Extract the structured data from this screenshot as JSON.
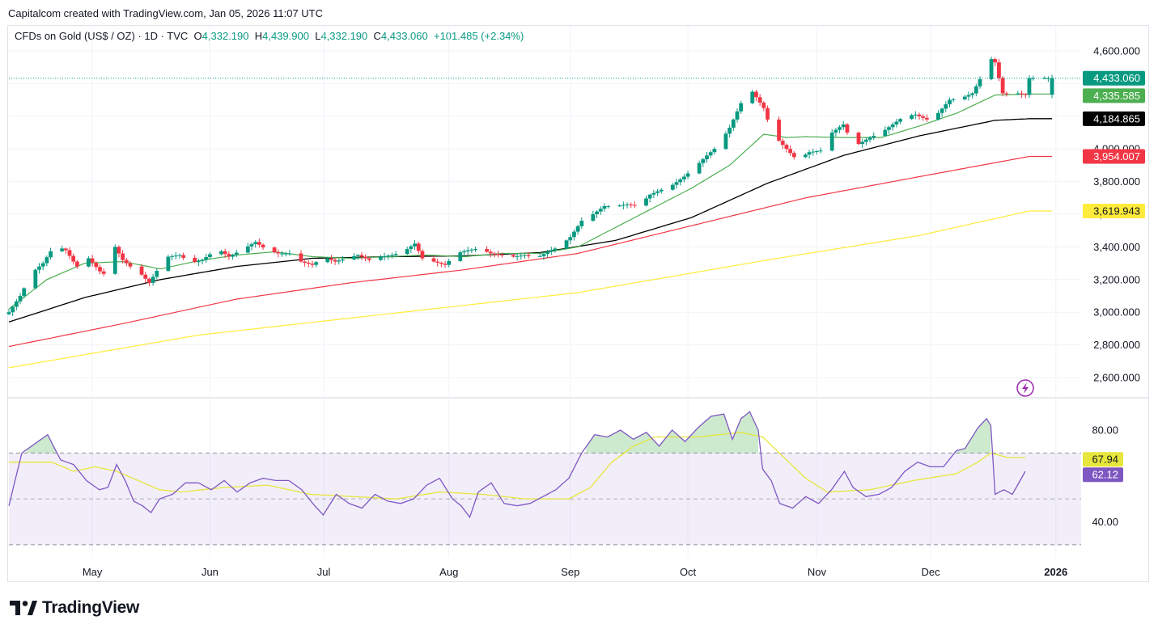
{
  "header": {
    "attribution": "Capitalcom created with TradingView.com, Jan 05, 2026 11:07 UTC",
    "symbol": "CFDs on Gold (US$ / OZ) · 1D · TVC",
    "o_label": "O",
    "o_value": "4,332.190",
    "h_label": "H",
    "h_value": "4,439.900",
    "l_label": "L",
    "l_value": "4,332.190",
    "c_label": "C",
    "c_value": "4,433.060",
    "change": "+101.485 (+2.34%)"
  },
  "brand": {
    "name": "TradingView",
    "icon": "tradingview-logo-icon"
  },
  "colors": {
    "up": "#089981",
    "down": "#f23645",
    "ma_green": "#4caf50",
    "ma_black": "#000000",
    "ma_red": "#f23645",
    "ma_yellow": "#ffeb3b",
    "rsi": "#7e57c2",
    "rsi_ma": "#e6e63c",
    "grid": "#f0f3fa",
    "flash_icon": "#9c27b0"
  },
  "chart_data": [
    {
      "type": "candlestick",
      "title": "CFDs on Gold (US$ / OZ)",
      "interval": "1D",
      "ylim": [
        2500,
        4700
      ],
      "y_ticks": [
        2600,
        2800,
        3000,
        3200,
        3400,
        3600,
        3800,
        4000,
        4200,
        4400,
        4600
      ],
      "y_tick_labels": [
        "2,600.000",
        "2,800.000",
        "3,000.000",
        "3,200.000",
        "3,400.000",
        "3,600.000",
        "3,800.000",
        "4,000.000",
        "4,200.000",
        "4,400.000",
        "4,600.000"
      ],
      "x_labels": [
        "May",
        "Jun",
        "Jul",
        "Aug",
        "Sep",
        "Oct",
        "Nov",
        "Dec",
        "2026"
      ],
      "x_label_days": [
        22,
        53,
        83,
        116,
        148,
        179,
        213,
        243,
        276
      ],
      "last_day": 275,
      "close_anchors": [
        [
          0,
          3000
        ],
        [
          3,
          3100
        ],
        [
          6,
          3240
        ],
        [
          9,
          3300
        ],
        [
          12,
          3410
        ],
        [
          15,
          3380
        ],
        [
          17,
          3310
        ],
        [
          19,
          3250
        ],
        [
          21,
          3330
        ],
        [
          24,
          3250
        ],
        [
          26,
          3220
        ],
        [
          28,
          3400
        ],
        [
          30,
          3320
        ],
        [
          32,
          3280
        ],
        [
          35,
          3230
        ],
        [
          37,
          3180
        ],
        [
          40,
          3290
        ],
        [
          42,
          3340
        ],
        [
          45,
          3350
        ],
        [
          48,
          3300
        ],
        [
          51,
          3320
        ],
        [
          55,
          3390
        ],
        [
          58,
          3340
        ],
        [
          62,
          3390
        ],
        [
          65,
          3430
        ],
        [
          68,
          3380
        ],
        [
          71,
          3360
        ],
        [
          74,
          3360
        ],
        [
          77,
          3310
        ],
        [
          80,
          3290
        ],
        [
          83,
          3340
        ],
        [
          86,
          3310
        ],
        [
          89,
          3330
        ],
        [
          92,
          3350
        ],
        [
          95,
          3320
        ],
        [
          98,
          3340
        ],
        [
          101,
          3350
        ],
        [
          104,
          3370
        ],
        [
          107,
          3420
        ],
        [
          109,
          3330
        ],
        [
          112,
          3310
        ],
        [
          115,
          3290
        ],
        [
          118,
          3360
        ],
        [
          121,
          3380
        ],
        [
          124,
          3390
        ],
        [
          127,
          3360
        ],
        [
          130,
          3350
        ],
        [
          133,
          3340
        ],
        [
          136,
          3350
        ],
        [
          139,
          3330
        ],
        [
          142,
          3370
        ],
        [
          145,
          3400
        ],
        [
          148,
          3460
        ],
        [
          151,
          3560
        ],
        [
          154,
          3600
        ],
        [
          157,
          3650
        ],
        [
          160,
          3650
        ],
        [
          163,
          3660
        ],
        [
          166,
          3650
        ],
        [
          169,
          3720
        ],
        [
          172,
          3750
        ],
        [
          175,
          3780
        ],
        [
          178,
          3830
        ],
        [
          181,
          3890
        ],
        [
          184,
          3960
        ],
        [
          187,
          4020
        ],
        [
          190,
          4130
        ],
        [
          193,
          4280
        ],
        [
          196,
          4350
        ],
        [
          199,
          4250
        ],
        [
          201,
          4110
        ],
        [
          203,
          4050
        ],
        [
          205,
          4000
        ],
        [
          207,
          3950
        ],
        [
          209,
          3950
        ],
        [
          211,
          3980
        ],
        [
          214,
          3990
        ],
        [
          217,
          4100
        ],
        [
          220,
          4150
        ],
        [
          222,
          4050
        ],
        [
          224,
          4030
        ],
        [
          227,
          4070
        ],
        [
          230,
          4100
        ],
        [
          233,
          4150
        ],
        [
          236,
          4200
        ],
        [
          239,
          4210
        ],
        [
          242,
          4180
        ],
        [
          245,
          4220
        ],
        [
          248,
          4300
        ],
        [
          251,
          4310
        ],
        [
          254,
          4340
        ],
        [
          257,
          4470
        ],
        [
          259,
          4550
        ],
        [
          260,
          4530
        ],
        [
          262,
          4340
        ],
        [
          264,
          4330
        ],
        [
          266,
          4340
        ],
        [
          268,
          4331
        ],
        [
          269,
          4433
        ]
      ],
      "last_values": {
        "close": 4433.06,
        "ma_green": 4335.585,
        "ma_black": 4184.865,
        "ma_red": 3954.007,
        "ma_yellow": 3619.943
      },
      "price_labels": [
        "4,433.060",
        "4,335.585",
        "4,184.865",
        "3,954.007",
        "3,619.943"
      ],
      "ma_green_anchors": [
        [
          0,
          3020
        ],
        [
          10,
          3200
        ],
        [
          20,
          3300
        ],
        [
          30,
          3310
        ],
        [
          40,
          3265
        ],
        [
          50,
          3315
        ],
        [
          60,
          3350
        ],
        [
          70,
          3370
        ],
        [
          80,
          3340
        ],
        [
          90,
          3330
        ],
        [
          100,
          3340
        ],
        [
          110,
          3350
        ],
        [
          120,
          3340
        ],
        [
          130,
          3360
        ],
        [
          140,
          3360
        ],
        [
          150,
          3400
        ],
        [
          160,
          3520
        ],
        [
          170,
          3640
        ],
        [
          180,
          3760
        ],
        [
          190,
          3900
        ],
        [
          199,
          4090
        ],
        [
          205,
          4070
        ],
        [
          210,
          4075
        ],
        [
          220,
          4070
        ],
        [
          230,
          4070
        ],
        [
          240,
          4140
        ],
        [
          250,
          4220
        ],
        [
          260,
          4330
        ],
        [
          269,
          4336
        ]
      ],
      "ma_black_anchors": [
        [
          0,
          2940
        ],
        [
          20,
          3090
        ],
        [
          40,
          3200
        ],
        [
          60,
          3280
        ],
        [
          80,
          3330
        ],
        [
          100,
          3340
        ],
        [
          120,
          3345
        ],
        [
          140,
          3365
        ],
        [
          160,
          3440
        ],
        [
          180,
          3580
        ],
        [
          200,
          3790
        ],
        [
          220,
          3960
        ],
        [
          240,
          4080
        ],
        [
          260,
          4175
        ],
        [
          269,
          4185
        ]
      ],
      "ma_red_anchors": [
        [
          0,
          2790
        ],
        [
          30,
          2930
        ],
        [
          60,
          3080
        ],
        [
          90,
          3180
        ],
        [
          120,
          3260
        ],
        [
          150,
          3360
        ],
        [
          180,
          3530
        ],
        [
          210,
          3700
        ],
        [
          240,
          3830
        ],
        [
          269,
          3954
        ]
      ],
      "ma_yellow_anchors": [
        [
          0,
          2660
        ],
        [
          50,
          2860
        ],
        [
          100,
          2990
        ],
        [
          150,
          3120
        ],
        [
          200,
          3320
        ],
        [
          240,
          3470
        ],
        [
          269,
          3620
        ]
      ]
    },
    {
      "type": "line",
      "title": "RSI",
      "ylim": [
        20,
        100
      ],
      "y_ticks": [
        40,
        80
      ],
      "y_tick_labels": [
        "40.00",
        "80.00"
      ],
      "bands": [
        30,
        50,
        70
      ],
      "last_values": {
        "rsi": 62.12,
        "rsi_ma": 67.94
      },
      "value_labels": [
        "67.94",
        "62.12"
      ],
      "rsi_anchors": [
        [
          0,
          47
        ],
        [
          3,
          70
        ],
        [
          6,
          74
        ],
        [
          9,
          78
        ],
        [
          12,
          67
        ],
        [
          15,
          65
        ],
        [
          18,
          58
        ],
        [
          21,
          54
        ],
        [
          23,
          55
        ],
        [
          25,
          65
        ],
        [
          27,
          58
        ],
        [
          29,
          49
        ],
        [
          31,
          47
        ],
        [
          33,
          44
        ],
        [
          35,
          50
        ],
        [
          38,
          52
        ],
        [
          41,
          57
        ],
        [
          44,
          57
        ],
        [
          47,
          54
        ],
        [
          50,
          58
        ],
        [
          53,
          53
        ],
        [
          56,
          57
        ],
        [
          59,
          59
        ],
        [
          62,
          58
        ],
        [
          65,
          58
        ],
        [
          68,
          54
        ],
        [
          71,
          47
        ],
        [
          73,
          43
        ],
        [
          76,
          52
        ],
        [
          79,
          48
        ],
        [
          82,
          46
        ],
        [
          85,
          52
        ],
        [
          88,
          49
        ],
        [
          91,
          48
        ],
        [
          94,
          50
        ],
        [
          97,
          56
        ],
        [
          100,
          59
        ],
        [
          103,
          50
        ],
        [
          105,
          47
        ],
        [
          107,
          42
        ],
        [
          109,
          53
        ],
        [
          112,
          57
        ],
        [
          115,
          48
        ],
        [
          118,
          47
        ],
        [
          121,
          48
        ],
        [
          124,
          51
        ],
        [
          127,
          54
        ],
        [
          130,
          59
        ],
        [
          133,
          70
        ],
        [
          136,
          78
        ],
        [
          139,
          77
        ],
        [
          142,
          80
        ],
        [
          145,
          76
        ],
        [
          148,
          79
        ],
        [
          151,
          73
        ],
        [
          154,
          80
        ],
        [
          157,
          75
        ],
        [
          160,
          81
        ],
        [
          163,
          86
        ],
        [
          166,
          87
        ],
        [
          168,
          76
        ],
        [
          170,
          85
        ],
        [
          172,
          88
        ],
        [
          174,
          80
        ],
        [
          175,
          63
        ],
        [
          177,
          58
        ],
        [
          179,
          48
        ],
        [
          182,
          46
        ],
        [
          185,
          51
        ],
        [
          188,
          48
        ],
        [
          191,
          54
        ],
        [
          194,
          62
        ],
        [
          196,
          55
        ],
        [
          199,
          51
        ],
        [
          202,
          52
        ],
        [
          205,
          55
        ],
        [
          208,
          62
        ],
        [
          211,
          66
        ],
        [
          214,
          64
        ],
        [
          217,
          64
        ],
        [
          220,
          71
        ],
        [
          222,
          72
        ],
        [
          225,
          81
        ],
        [
          227,
          85
        ],
        [
          228,
          82
        ],
        [
          229,
          52
        ],
        [
          231,
          54
        ],
        [
          233,
          52
        ],
        [
          236,
          62
        ]
      ],
      "rsi_ma_anchors": [
        [
          0,
          66
        ],
        [
          10,
          66
        ],
        [
          15,
          62
        ],
        [
          20,
          64
        ],
        [
          25,
          62
        ],
        [
          30,
          58
        ],
        [
          35,
          54
        ],
        [
          40,
          53
        ],
        [
          50,
          55
        ],
        [
          60,
          56
        ],
        [
          70,
          52
        ],
        [
          80,
          51
        ],
        [
          90,
          50
        ],
        [
          100,
          53
        ],
        [
          110,
          52
        ],
        [
          120,
          50
        ],
        [
          130,
          50
        ],
        [
          135,
          55
        ],
        [
          140,
          66
        ],
        [
          145,
          73
        ],
        [
          150,
          77
        ],
        [
          160,
          77
        ],
        [
          170,
          79
        ],
        [
          175,
          77
        ],
        [
          180,
          68
        ],
        [
          185,
          59
        ],
        [
          190,
          53
        ],
        [
          200,
          54
        ],
        [
          210,
          58
        ],
        [
          220,
          61
        ],
        [
          225,
          66
        ],
        [
          228,
          70
        ],
        [
          232,
          68
        ],
        [
          236,
          68
        ]
      ]
    }
  ]
}
